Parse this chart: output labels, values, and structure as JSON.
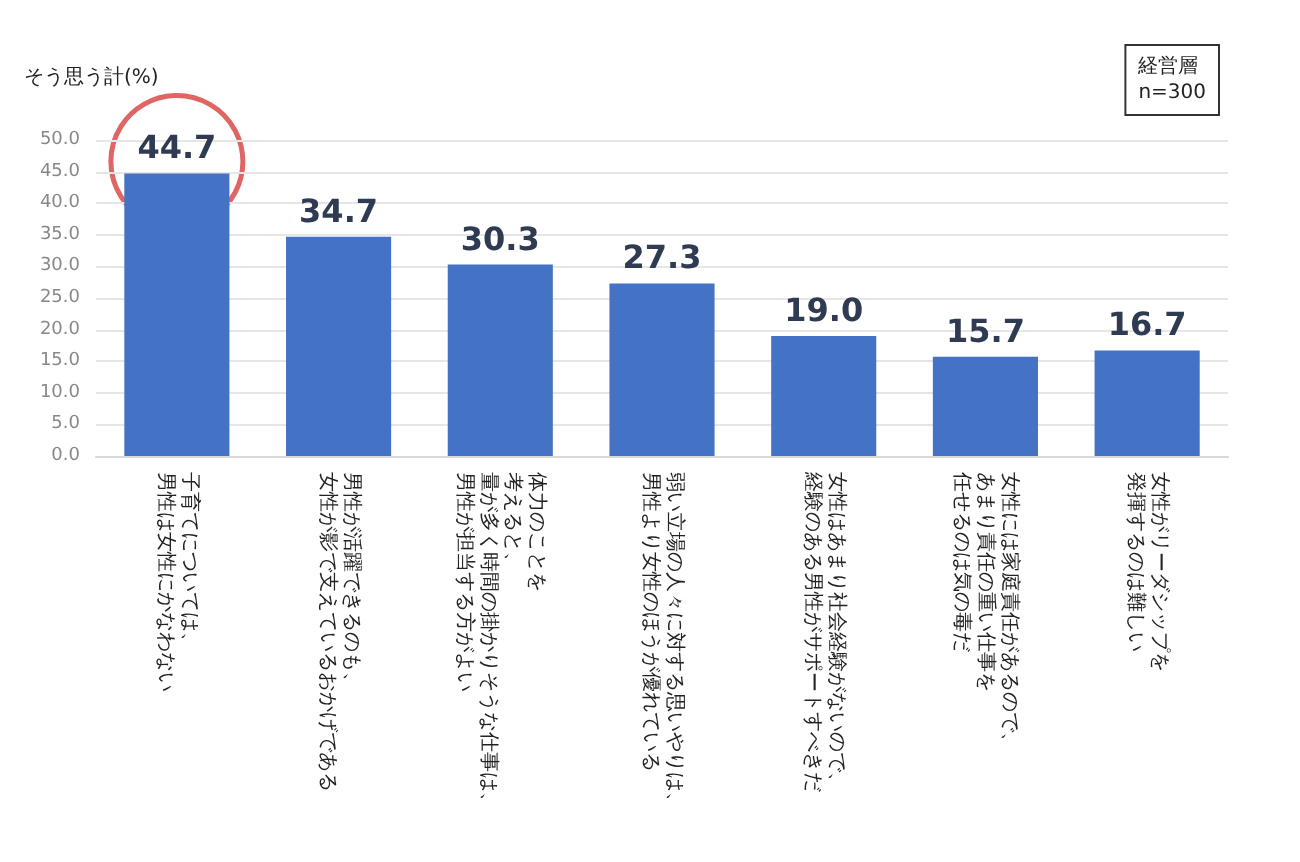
{
  "chart_data": {
    "type": "bar",
    "ylabel": "そう思う計(%)",
    "annotations": [
      "経営層\nn=300"
    ],
    "categories": [
      "子育てについては、男性は女性にかなわない",
      "男性が活躍できるのも、女性が影で支えているおかげである",
      "体力のことを考えると、量が多く時間の掛かりそうな仕事は、男性が担当する方がよい",
      "弱い立場の人々に対する思いやりは、男性より女性のほうが優れている",
      "女性はあまり社会経験がないので、経験のある男性がサポートすべきだ",
      "女性には家庭責任があるので、あまり責任の重い仕事を任せるのは気の毒だ",
      "女性がリーダシップを発揮するのは難しい"
    ],
    "values": [
      44.7,
      34.7,
      30.3,
      27.3,
      19.0,
      15.7,
      16.7
    ],
    "value_labels": [
      "44.7",
      "34.7",
      "30.3",
      "27.3",
      "19.0",
      "15.7",
      "16.7"
    ],
    "color": "#4472c4",
    "grid": "y",
    "ylim": [
      0,
      50
    ],
    "yticks": [
      {
        "value": 0,
        "label": "0.0"
      },
      {
        "value": 5,
        "label": "5.0"
      },
      {
        "value": 10,
        "label": "10.0"
      },
      {
        "value": 15,
        "label": "15.0"
      },
      {
        "value": 20,
        "label": "20.0"
      },
      {
        "value": 25,
        "label": "25.0"
      },
      {
        "value": 30,
        "label": "30.0"
      },
      {
        "value": 35,
        "label": "35.0"
      },
      {
        "value": 40,
        "label": "40.0"
      },
      {
        "value": 45,
        "label": "45.0"
      },
      {
        "value": 50,
        "label": "50.0"
      }
    ]
  }
}
